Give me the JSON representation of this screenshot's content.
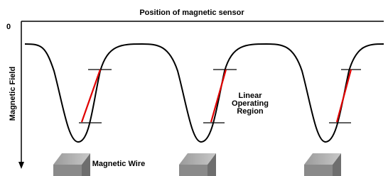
{
  "header": {
    "title": "Position of magnetic sensor"
  },
  "axis": {
    "origin_label": "0",
    "y_label": "Magnetic Field"
  },
  "annotation": {
    "lines": [
      "Linear",
      "Operating",
      "Region"
    ]
  },
  "wire_label": "Magnetic Wire"
}
